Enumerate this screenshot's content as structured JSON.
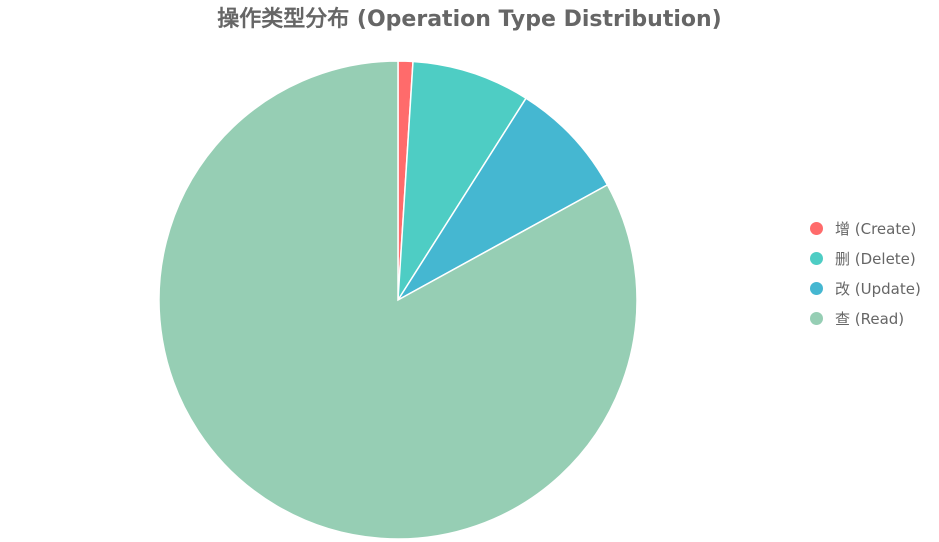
{
  "chart_data": {
    "type": "pie",
    "title": "操作类型分布 (Operation Type Distribution)",
    "categories": [
      "增 (Create)",
      "删 (Delete)",
      "改 (Update)",
      "查 (Read)"
    ],
    "values": [
      1,
      8,
      8,
      83
    ],
    "colors": [
      "#ff6b6b",
      "#4ecdc4",
      "#45b7d1",
      "#96ceb4"
    ],
    "legend": "right",
    "start_angle": "top",
    "direction": "clockwise"
  }
}
